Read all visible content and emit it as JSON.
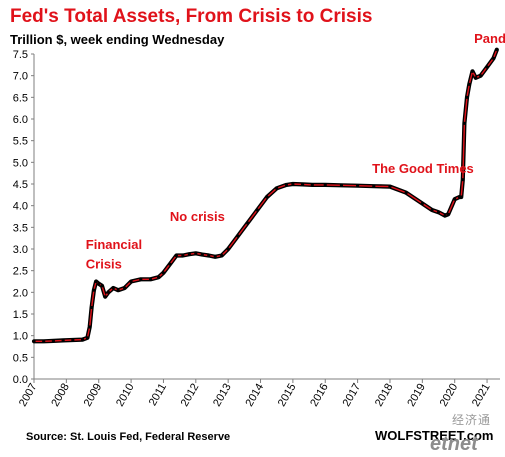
{
  "chart_data": {
    "type": "line",
    "title": "Fed's Total Assets, From Crisis to Crisis",
    "subtitle": "Trillion $, week ending Wednesday",
    "ylim": [
      0,
      7.5
    ],
    "xlim": [
      2007,
      2021.4
    ],
    "y_ticks": [
      "0.0",
      "0.5",
      "1.0",
      "1.5",
      "2.0",
      "2.5",
      "3.0",
      "3.5",
      "4.0",
      "4.5",
      "5.0",
      "5.5",
      "6.0",
      "6.5",
      "7.0",
      "7.5"
    ],
    "x_ticks": [
      "2007",
      "2008",
      "2009",
      "2010",
      "2011",
      "2012",
      "2013",
      "2014",
      "2015",
      "2016",
      "2017",
      "2018",
      "2019",
      "2020",
      "2021"
    ],
    "grid": false,
    "colors": {
      "line": "#e0121a",
      "markers": "#000000",
      "annotation": "#e0121a"
    },
    "series": [
      {
        "x": [
          2007.0,
          2007.3,
          2007.6,
          2007.9,
          2008.2,
          2008.5,
          2008.65,
          2008.72,
          2008.78,
          2008.85,
          2008.92,
          2009.0,
          2009.1,
          2009.2,
          2009.3,
          2009.45,
          2009.6,
          2009.8,
          2010.0,
          2010.3,
          2010.6,
          2010.85,
          2011.0,
          2011.2,
          2011.4,
          2011.6,
          2011.8,
          2012.0,
          2012.2,
          2012.4,
          2012.6,
          2012.8,
          2013.0,
          2013.3,
          2013.6,
          2013.9,
          2014.2,
          2014.5,
          2014.8,
          2015.0,
          2015.3,
          2015.6,
          2016.0,
          2016.5,
          2017.0,
          2017.5,
          2018.0,
          2018.5,
          2019.0,
          2019.3,
          2019.5,
          2019.7,
          2019.8,
          2020.0,
          2020.15,
          2020.2,
          2020.25,
          2020.3,
          2020.38,
          2020.45,
          2020.55,
          2020.65,
          2020.8,
          2021.0,
          2021.2,
          2021.3
        ],
        "y": [
          0.87,
          0.87,
          0.88,
          0.89,
          0.9,
          0.91,
          0.95,
          1.2,
          1.65,
          2.05,
          2.25,
          2.2,
          2.15,
          1.9,
          2.0,
          2.1,
          2.05,
          2.1,
          2.25,
          2.3,
          2.3,
          2.35,
          2.45,
          2.65,
          2.85,
          2.85,
          2.88,
          2.9,
          2.87,
          2.85,
          2.82,
          2.85,
          3.0,
          3.3,
          3.6,
          3.9,
          4.2,
          4.4,
          4.48,
          4.5,
          4.49,
          4.48,
          4.48,
          4.47,
          4.46,
          4.45,
          4.44,
          4.3,
          4.05,
          3.9,
          3.85,
          3.77,
          3.8,
          4.15,
          4.2,
          4.2,
          4.6,
          5.9,
          6.5,
          6.8,
          7.1,
          6.95,
          7.0,
          7.2,
          7.4,
          7.6
        ]
      }
    ],
    "annotations": [
      {
        "text": "Financial",
        "x": 2008.6,
        "y": 3.0
      },
      {
        "text": "Crisis",
        "x": 2008.6,
        "y": 2.55
      },
      {
        "text": "No crisis",
        "x": 2011.2,
        "y": 3.65
      },
      {
        "text": "The Good Times",
        "x": 2017.45,
        "y": 4.75
      },
      {
        "text": "Pandemic",
        "x": 2020.6,
        "y": 7.75
      }
    ]
  },
  "footer": {
    "source": "Source: St. Louis Fed, Federal Reserve",
    "brand": "WOLFSTREET.com"
  },
  "watermark": {
    "cn_text": "经济通",
    "logo_text": "etnet"
  }
}
